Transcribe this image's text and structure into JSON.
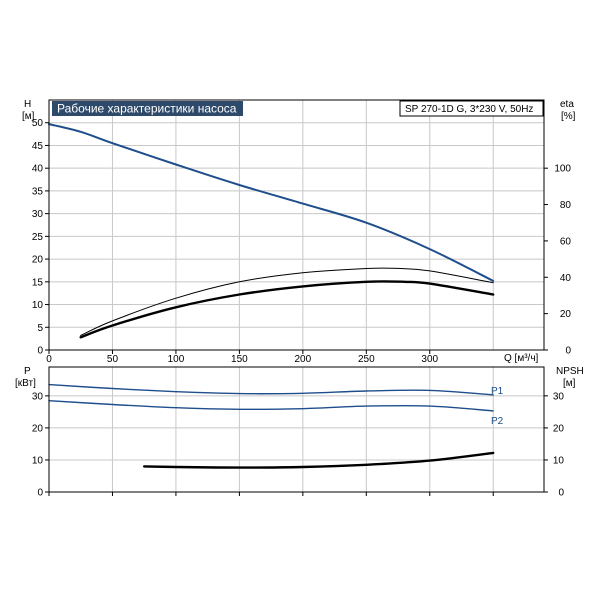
{
  "chart_data": {
    "type": "line",
    "title": "Рабочие характеристики насоса",
    "model": "SP 270-1D G, 3*230 V, 50Hz",
    "colors": {
      "blue": "#1f4e8c",
      "black": "#000000",
      "grid": "#c8c8c8"
    },
    "top_panel": {
      "left_axis": {
        "label": "H",
        "unit": "[м]",
        "range": [
          0,
          55
        ],
        "ticks": [
          0,
          5,
          10,
          15,
          20,
          25,
          30,
          35,
          40,
          45,
          50
        ]
      },
      "right_axis": {
        "label": "eta",
        "unit": "[%]",
        "range": [
          0,
          137.5
        ],
        "ticks": [
          0,
          20,
          40,
          60,
          80,
          100
        ]
      },
      "x_axis": {
        "label": "Q [м³/ч]",
        "range": [
          0,
          390
        ],
        "ticks": [
          0,
          50,
          100,
          150,
          200,
          250,
          300
        ]
      },
      "grid": true,
      "series": [
        {
          "color": "#1f4e8c",
          "axis": "left",
          "width": 2,
          "points": [
            [
              0,
              49.7
            ],
            [
              25,
              48
            ],
            [
              50,
              45.5
            ],
            [
              100,
              40.8
            ],
            [
              150,
              36.3
            ],
            [
              200,
              32.2
            ],
            [
              250,
              28
            ],
            [
              300,
              22.2
            ],
            [
              350,
              15.2
            ]
          ]
        },
        {
          "color": "#000000",
          "axis": "right",
          "width": 1,
          "points": [
            [
              25,
              8
            ],
            [
              50,
              16
            ],
            [
              100,
              28.5
            ],
            [
              150,
              37.5
            ],
            [
              200,
              42.5
            ],
            [
              250,
              44.8
            ],
            [
              275,
              44.9
            ],
            [
              300,
              43.5
            ],
            [
              350,
              37
            ]
          ]
        },
        {
          "color": "#000000",
          "axis": "right",
          "width": 2.4,
          "points": [
            [
              25,
              7
            ],
            [
              50,
              13.5
            ],
            [
              100,
              23.5
            ],
            [
              150,
              30.5
            ],
            [
              200,
              35
            ],
            [
              250,
              37.5
            ],
            [
              280,
              37.5
            ],
            [
              300,
              36.5
            ],
            [
              350,
              30.5
            ]
          ]
        }
      ]
    },
    "bottom_panel": {
      "left_axis": {
        "label": "P",
        "unit": "[кВт]",
        "range": [
          0,
          39
        ],
        "ticks": [
          0,
          10,
          20,
          30
        ]
      },
      "right_axis": {
        "label": "NPSH",
        "unit": "[м]",
        "range": [
          0,
          39
        ],
        "ticks": [
          0,
          10,
          20,
          30
        ]
      },
      "x_axis": {
        "range": [
          0,
          390
        ]
      },
      "grid": true,
      "series": [
        {
          "name": "P1",
          "color": "#1f4e8c",
          "axis": "left",
          "width": 1.4,
          "points": [
            [
              0,
              33.5
            ],
            [
              50,
              32.3
            ],
            [
              100,
              31.3
            ],
            [
              150,
              30.7
            ],
            [
              200,
              30.8
            ],
            [
              250,
              31.5
            ],
            [
              300,
              31.7
            ],
            [
              350,
              30.3
            ]
          ]
        },
        {
          "name": "P2",
          "color": "#1f4e8c",
          "axis": "left",
          "width": 1.4,
          "points": [
            [
              0,
              28.5
            ],
            [
              50,
              27.3
            ],
            [
              100,
              26.3
            ],
            [
              150,
              25.8
            ],
            [
              200,
              26
            ],
            [
              250,
              26.8
            ],
            [
              300,
              26.8
            ],
            [
              350,
              25.3
            ]
          ]
        },
        {
          "color": "#000000",
          "axis": "right",
          "width": 2.4,
          "points": [
            [
              75,
              8
            ],
            [
              100,
              7.8
            ],
            [
              150,
              7.6
            ],
            [
              200,
              7.8
            ],
            [
              250,
              8.5
            ],
            [
              300,
              9.8
            ],
            [
              350,
              12.2
            ]
          ]
        }
      ]
    }
  }
}
